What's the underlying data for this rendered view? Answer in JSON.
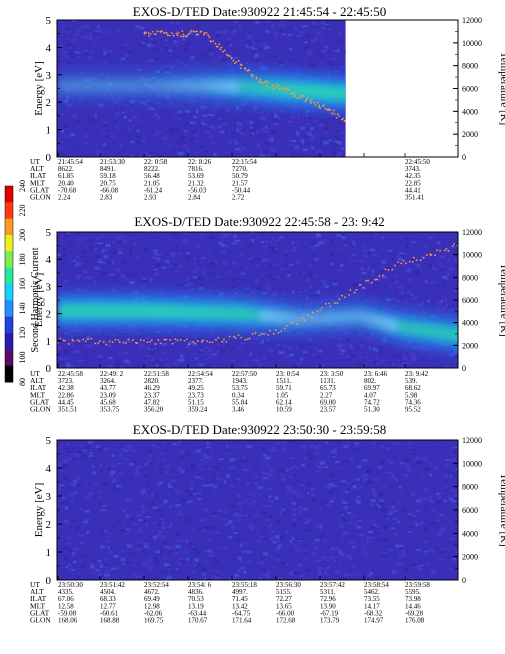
{
  "colors": {
    "background": "#3a2fb8",
    "band": "#1fa8e8",
    "band_core": "#9af2ff",
    "trace": "#ff9a3a"
  },
  "colorbar": {
    "label": "Second Harmonic Current",
    "ticks": [
      "80",
      "100",
      "120",
      "140",
      "160",
      "180",
      "200",
      "220",
      "240"
    ],
    "colors": [
      "#000000",
      "#5a0a6a",
      "#2a1ab0",
      "#2340e0",
      "#1e90ff",
      "#18d0ff",
      "#22e8a0",
      "#7af050",
      "#e8f020",
      "#ff9a20",
      "#ff3a10",
      "#e00000"
    ]
  },
  "panels": [
    {
      "title": "EXOS-D/TED   Date:930922  21:45:54 - 22:45:50",
      "ylabel": "Energy [eV]",
      "y2label": "Temperature [K]",
      "yticks": [
        "0",
        "1",
        "2",
        "3",
        "4",
        "5"
      ],
      "y2ticks": [
        "0",
        "2000",
        "4000",
        "6000",
        "8000",
        "10000",
        "12000"
      ],
      "data_coverage": 0.72,
      "band": {
        "x": [
          0.3,
          0.5,
          0.65,
          0.8,
          1.0
        ],
        "center_ev": [
          2.6,
          2.6,
          2.55,
          2.45,
          2.3
        ],
        "strength": [
          0.3,
          0.5,
          0.8,
          1.0,
          1.0
        ]
      },
      "trace": {
        "x": [
          0.3,
          0.45,
          0.6,
          0.75,
          0.9,
          1.0
        ],
        "energy_ev": [
          4.5,
          3.5,
          2.7,
          2.3,
          1.8,
          1.3
        ]
      },
      "rows": [
        {
          "label": "UT",
          "values": [
            "21:45:54",
            "21:53:30",
            "22: 0:58",
            "22: 8:26",
            "22:15:54",
            "",
            "",
            "",
            "22:45:50"
          ]
        },
        {
          "label": "ALT",
          "values": [
            "8622.",
            "8491.",
            "8222.",
            "7816.",
            "7270.",
            "",
            "",
            "",
            "3743."
          ]
        },
        {
          "label": "ILAT",
          "values": [
            "61.85",
            "59.18",
            "56.48",
            "53.69",
            "50.79",
            "",
            "",
            "",
            "42.35"
          ]
        },
        {
          "label": "MLT",
          "values": [
            "20.40",
            "20.75",
            "21.05",
            "21.32",
            "21.57",
            "",
            "",
            "",
            "22.85"
          ]
        },
        {
          "label": "GLAT",
          "values": [
            "-70.68",
            "-66.08",
            "-61.24",
            "-56.03",
            "-50.44",
            "",
            "",
            "",
            "44.41"
          ]
        },
        {
          "label": "GLON",
          "values": [
            "2.24",
            "2.83",
            "2.93",
            "2.84",
            "2.72",
            "",
            "",
            "",
            "351.41"
          ]
        }
      ]
    },
    {
      "title": "EXOS-D/TED   Date:930922  22:45:58 - 23: 9:42",
      "ylabel": "Energy [eV]",
      "y2label": "Temperature [K]",
      "yticks": [
        "0",
        "1",
        "2",
        "3",
        "4",
        "5"
      ],
      "y2ticks": [
        "0",
        "2000",
        "4000",
        "6000",
        "8000",
        "10000",
        "12000"
      ],
      "data_coverage": 1.0,
      "band": {
        "x": [
          0.0,
          0.2,
          0.45,
          0.6,
          0.75,
          0.85,
          1.0
        ],
        "center_ev": [
          2.1,
          2.1,
          2.0,
          1.8,
          1.9,
          1.5,
          1.2
        ],
        "strength": [
          1.0,
          1.0,
          0.9,
          0.5,
          0.5,
          0.8,
          0.9
        ]
      },
      "trace": {
        "x": [
          0.0,
          0.2,
          0.4,
          0.55,
          0.7,
          0.85,
          1.0
        ],
        "energy_ev": [
          1.0,
          0.95,
          1.0,
          1.3,
          2.5,
          3.8,
          4.5
        ]
      },
      "rows": [
        {
          "label": "UT",
          "values": [
            "22:45:58",
            "22:49: 2",
            "22:51:58",
            "22:54:54",
            "22:57:50",
            "23: 0:54",
            "23: 3:50",
            "23: 6:46",
            "23: 9:42"
          ]
        },
        {
          "label": "ALT",
          "values": [
            "3723.",
            "3264.",
            "2820.",
            "2377.",
            "1943.",
            "1511.",
            "1131.",
            "802.",
            "539."
          ]
        },
        {
          "label": "ILAT",
          "values": [
            "42.38",
            "43.77",
            "46.29",
            "49.25",
            "53.75",
            "59.71",
            "65.73",
            "69.97",
            "68.62"
          ]
        },
        {
          "label": "MLT",
          "values": [
            "22.86",
            "23.09",
            "23.37",
            "23.73",
            "0.34",
            "1.05",
            "2.27",
            "4.07",
            "5.98"
          ]
        },
        {
          "label": "GLAT",
          "values": [
            "44.45",
            "45.68",
            "47.82",
            "51.15",
            "55.84",
            "62.14",
            "69.00",
            "74.72",
            "74.36"
          ]
        },
        {
          "label": "GLON",
          "values": [
            "351.51",
            "353.75",
            "356.20",
            "359.24",
            "3.46",
            "10.59",
            "23.57",
            "51.30",
            "95.52"
          ]
        }
      ]
    },
    {
      "title": "EXOS-D/TED   Date:930922  23:50:30 - 23:59:58",
      "ylabel": "Energy [eV]",
      "y2label": "Temperature [K]",
      "yticks": [
        "0",
        "1",
        "2",
        "3",
        "4",
        "5"
      ],
      "y2ticks": [
        "0",
        "2000",
        "4000",
        "6000",
        "8000",
        "10000",
        "12000"
      ],
      "data_coverage": 1.0,
      "band": null,
      "trace": null,
      "rows": [
        {
          "label": "UT",
          "values": [
            "23:50:30",
            "23:51:42",
            "23:52:54",
            "23:54: 6",
            "23:55:18",
            "23:56:30",
            "23:57:42",
            "23:58:54",
            "23:59:58"
          ]
        },
        {
          "label": "ALT",
          "values": [
            "4335.",
            "4504.",
            "4672.",
            "4836.",
            "4997.",
            "5155.",
            "5311.",
            "5462.",
            "5595."
          ]
        },
        {
          "label": "ILAT",
          "values": [
            "67.06",
            "68.33",
            "69.49",
            "70.53",
            "71.45",
            "72.27",
            "72.96",
            "73.55",
            "73.98"
          ]
        },
        {
          "label": "MLT",
          "values": [
            "12.58",
            "12.77",
            "12.98",
            "13.19",
            "13.42",
            "13.65",
            "13.90",
            "14.17",
            "14.46"
          ]
        },
        {
          "label": "GLAT",
          "values": [
            "-59.08",
            "-60.61",
            "-62.06",
            "-63.44",
            "-64.75",
            "-66.00",
            "-67.19",
            "-68.32",
            "-69.28"
          ]
        },
        {
          "label": "GLON",
          "values": [
            "168.06",
            "168.88",
            "169.75",
            "170.67",
            "171.64",
            "172.68",
            "173.79",
            "174.97",
            "176.08"
          ]
        }
      ]
    }
  ],
  "chart_data": [
    {
      "type": "heatmap",
      "title": "EXOS-D/TED   Date:930922  21:45:54 - 22:45:50",
      "ylabel": "Energy [eV]",
      "y2label": "Temperature [K]",
      "ylim": [
        0,
        5
      ],
      "y2lim": [
        0,
        12000
      ],
      "x_ticks": [
        "21:45:54",
        "21:53:30",
        "22: 0:58",
        "22: 8:26",
        "22:15:54",
        "22:45:50"
      ],
      "colorbar_label": "Second Harmonic Current",
      "colorbar_range": [
        80,
        240
      ]
    },
    {
      "type": "heatmap",
      "title": "EXOS-D/TED   Date:930922  22:45:58 - 23: 9:42",
      "ylabel": "Energy [eV]",
      "y2label": "Temperature [K]",
      "ylim": [
        0,
        5
      ],
      "y2lim": [
        0,
        12000
      ],
      "x_ticks": [
        "22:45:58",
        "22:49: 2",
        "22:51:58",
        "22:54:54",
        "22:57:50",
        "23: 0:54",
        "23: 3:50",
        "23: 6:46",
        "23: 9:42"
      ],
      "colorbar_label": "Second Harmonic Current",
      "colorbar_range": [
        80,
        240
      ]
    },
    {
      "type": "heatmap",
      "title": "EXOS-D/TED   Date:930922  23:50:30 - 23:59:58",
      "ylabel": "Energy [eV]",
      "y2label": "Temperature [K]",
      "ylim": [
        0,
        5
      ],
      "y2lim": [
        0,
        12000
      ],
      "x_ticks": [
        "23:50:30",
        "23:51:42",
        "23:52:54",
        "23:54: 6",
        "23:55:18",
        "23:56:30",
        "23:57:42",
        "23:58:54",
        "23:59:58"
      ],
      "colorbar_label": "Second Harmonic Current",
      "colorbar_range": [
        80,
        240
      ]
    }
  ]
}
